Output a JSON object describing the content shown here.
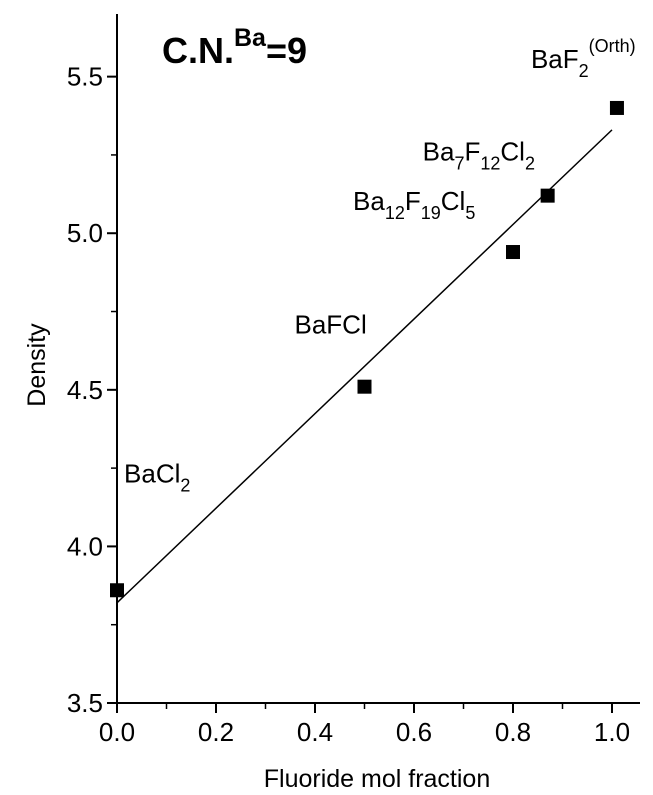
{
  "chart_data": {
    "type": "scatter",
    "title": {
      "main": "C.N.",
      "sup": "Ba",
      "suffix": "=9"
    },
    "xlabel": "Fluoride mol fraction",
    "ylabel": "Density",
    "xlim": [
      0.0,
      1.0
    ],
    "ylim": [
      3.5,
      5.7
    ],
    "xticks": [
      0.0,
      0.2,
      0.4,
      0.6,
      0.8,
      1.0
    ],
    "xtick_labels": [
      "0.0",
      "0.2",
      "0.4",
      "0.6",
      "0.8",
      "1.0"
    ],
    "yticks": [
      3.5,
      4.0,
      4.5,
      5.0,
      5.5
    ],
    "ytick_labels": [
      "3.5",
      "4.0",
      "4.5",
      "5.0",
      "5.5"
    ],
    "points": [
      {
        "label_parts": [
          [
            "Ba",
            ""
          ],
          [
            "Cl",
            ""
          ],
          [
            "2",
            "sub"
          ]
        ],
        "x": 0.0,
        "y": 3.86
      },
      {
        "label_parts": [
          [
            "BaFCl",
            ""
          ]
        ],
        "x": 0.5,
        "y": 4.51
      },
      {
        "label_parts": [
          [
            "Ba",
            ""
          ],
          [
            "12",
            "sub"
          ],
          [
            "F",
            ""
          ],
          [
            "19",
            "sub"
          ],
          [
            "Cl",
            ""
          ],
          [
            "5",
            "sub"
          ]
        ],
        "x": 0.8,
        "y": 4.94
      },
      {
        "label_parts": [
          [
            "Ba",
            ""
          ],
          [
            "7",
            "sub"
          ],
          [
            "F",
            ""
          ],
          [
            "12",
            "sub"
          ],
          [
            "Cl",
            ""
          ],
          [
            "2",
            "sub"
          ]
        ],
        "x": 0.87,
        "y": 5.12
      },
      {
        "label_parts": [
          [
            "BaF",
            ""
          ],
          [
            "2",
            "sub"
          ],
          [
            "(Orth)",
            "sup"
          ]
        ],
        "x": 1.01,
        "y": 5.4
      }
    ],
    "fit_line": {
      "x": [
        0.0,
        1.0
      ],
      "y": [
        3.82,
        5.33
      ]
    },
    "grid": false,
    "legend": "none"
  }
}
